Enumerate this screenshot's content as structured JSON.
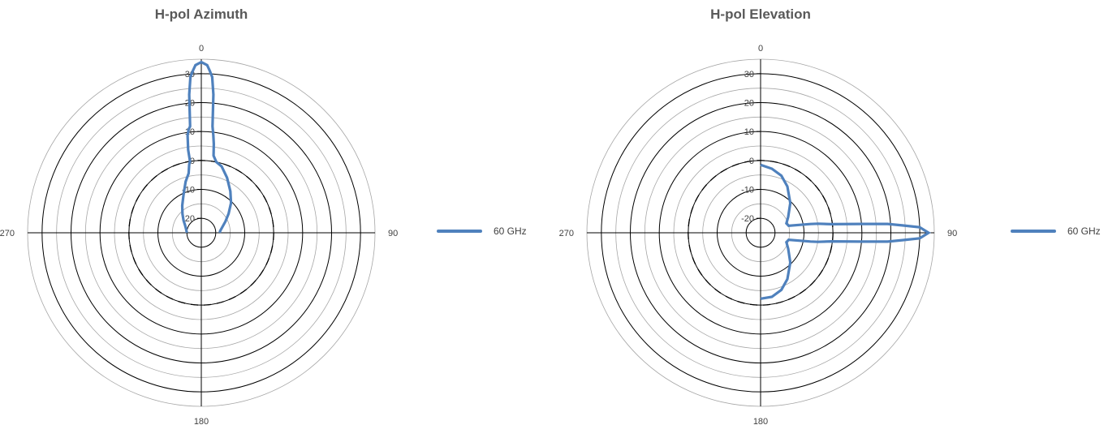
{
  "chart_data": [
    {
      "type": "polar-line",
      "title": "H-pol Azimuth",
      "angle_labels": [
        "0",
        "90",
        "180",
        "270"
      ],
      "radial_ticks": [
        "30",
        "20",
        "10",
        "0",
        "-10",
        "-20"
      ],
      "rlim": [
        -25,
        35
      ],
      "reference_ring": 0,
      "grid": true,
      "legend_position": "right",
      "series": [
        {
          "name": "60 GHz",
          "color": "#4f81bd",
          "points": [
            [
              270,
              -20
            ],
            [
              275,
              -19.9
            ],
            [
              285,
              -19.5
            ],
            [
              295,
              -18.8
            ],
            [
              305,
              -17.5
            ],
            [
              315,
              -15.8
            ],
            [
              325,
              -13.5
            ],
            [
              335,
              -10.5
            ],
            [
              343,
              -6.5
            ],
            [
              348,
              -4
            ],
            [
              350,
              -1
            ],
            [
              351,
              0
            ],
            [
              351,
              4
            ],
            [
              352,
              9
            ],
            [
              353,
              11
            ],
            [
              354,
              12
            ],
            [
              355,
              23
            ],
            [
              356,
              29
            ],
            [
              357,
              31
            ],
            [
              358,
              33
            ],
            [
              0,
              34
            ],
            [
              2,
              33
            ],
            [
              3,
              31
            ],
            [
              4,
              29
            ],
            [
              5,
              23
            ],
            [
              6,
              12
            ],
            [
              7,
              9
            ],
            [
              8,
              6
            ],
            [
              9,
              2
            ],
            [
              12,
              0
            ],
            [
              17,
              -1
            ],
            [
              25,
              -4
            ],
            [
              35,
              -7.5
            ],
            [
              45,
              -10.5
            ],
            [
              55,
              -13.5
            ],
            [
              65,
              -15.8
            ],
            [
              75,
              -17.5
            ],
            [
              85,
              -18.5
            ],
            [
              90,
              -18.6
            ]
          ]
        }
      ]
    },
    {
      "type": "polar-line",
      "title": "H-pol Elevation",
      "angle_labels": [
        "0",
        "90",
        "180",
        "270"
      ],
      "radial_ticks": [
        "30",
        "20",
        "10",
        "0",
        "-10",
        "-20"
      ],
      "rlim": [
        -25,
        35
      ],
      "reference_ring": 0,
      "grid": true,
      "legend_position": "right",
      "series": [
        {
          "name": "60 GHz",
          "color": "#4f81bd",
          "points": [
            [
              0,
              -1.5
            ],
            [
              10,
              -2.5
            ],
            [
              20,
              -4
            ],
            [
              30,
              -6.5
            ],
            [
              45,
              -10.5
            ],
            [
              60,
              -14
            ],
            [
              70,
              -15.5
            ],
            [
              76,
              -15
            ],
            [
              80,
              -7.5
            ],
            [
              81,
              -5
            ],
            [
              83,
              -0.5
            ],
            [
              85,
              10
            ],
            [
              86,
              19
            ],
            [
              87,
              24
            ],
            [
              88,
              30
            ],
            [
              90,
              33
            ],
            [
              92,
              30
            ],
            [
              93,
              24
            ],
            [
              94,
              19
            ],
            [
              95,
              10
            ],
            [
              97,
              -0.5
            ],
            [
              99,
              -5
            ],
            [
              100,
              -7.5
            ],
            [
              104,
              -15
            ],
            [
              110,
              -15.5
            ],
            [
              120,
              -14
            ],
            [
              135,
              -10.5
            ],
            [
              150,
              -6.5
            ],
            [
              160,
              -4
            ],
            [
              170,
              -2.5
            ],
            [
              180,
              -2.2
            ]
          ]
        }
      ]
    }
  ]
}
